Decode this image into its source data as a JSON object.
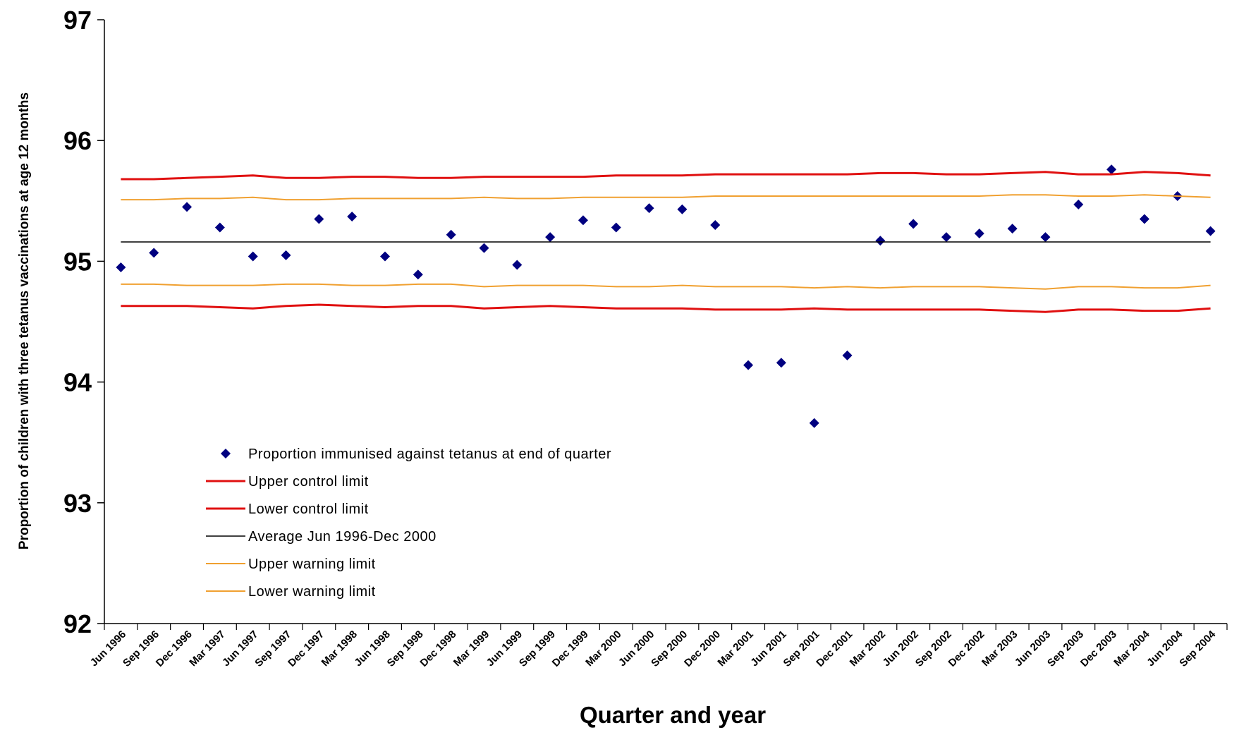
{
  "chart_data": {
    "type": "scatter",
    "title": "",
    "xlabel": "Quarter and year",
    "ylabel": "Proportion of children with three tetanus vaccinations at age 12 months",
    "ylim": [
      92,
      97
    ],
    "yticks": [
      "92",
      "93",
      "94",
      "95",
      "96",
      "97"
    ],
    "grid": false,
    "legend_position": "lower-left",
    "categories": [
      "Jun 1996",
      "Sep 1996",
      "Dec 1996",
      "Mar 1997",
      "Jun 1997",
      "Sep 1997",
      "Dec 1997",
      "Mar 1998",
      "Jun 1998",
      "Sep 1998",
      "Dec 1998",
      "Mar 1999",
      "Jun 1999",
      "Sep 1999",
      "Dec 1999",
      "Mar 2000",
      "Jun 2000",
      "Sep 2000",
      "Dec 2000",
      "Mar 2001",
      "Jun 2001",
      "Sep 2001",
      "Dec 2001",
      "Mar 2002",
      "Jun 2002",
      "Sep 2002",
      "Dec 2002",
      "Mar 2003",
      "Jun 2003",
      "Sep 2003",
      "Dec 2003",
      "Mar 2004",
      "Jun 2004",
      "Sep 2004"
    ],
    "series": [
      {
        "name": "Proportion immunised against tetanus at end of quarter",
        "kind": "marker",
        "marker": "diamond",
        "color": "#000080",
        "values": [
          94.95,
          95.07,
          95.45,
          95.28,
          95.04,
          95.05,
          95.35,
          95.37,
          95.04,
          94.89,
          95.22,
          95.11,
          94.97,
          95.2,
          95.34,
          95.28,
          95.44,
          95.43,
          95.3,
          94.14,
          94.16,
          93.66,
          94.22,
          95.17,
          95.31,
          95.2,
          95.23,
          95.27,
          95.2,
          95.47,
          95.76,
          95.35,
          95.54,
          95.25
        ]
      },
      {
        "name": "Upper control limit",
        "kind": "line",
        "color": "#e01010",
        "values": [
          95.68,
          95.68,
          95.69,
          95.7,
          95.71,
          95.69,
          95.69,
          95.7,
          95.7,
          95.69,
          95.69,
          95.7,
          95.7,
          95.7,
          95.7,
          95.71,
          95.71,
          95.71,
          95.72,
          95.72,
          95.72,
          95.72,
          95.72,
          95.73,
          95.73,
          95.72,
          95.72,
          95.73,
          95.74,
          95.72,
          95.72,
          95.74,
          95.73,
          95.71
        ]
      },
      {
        "name": "Lower control limit",
        "kind": "line",
        "color": "#e01010",
        "values": [
          94.63,
          94.63,
          94.63,
          94.62,
          94.61,
          94.63,
          94.64,
          94.63,
          94.62,
          94.63,
          94.63,
          94.61,
          94.62,
          94.63,
          94.62,
          94.61,
          94.61,
          94.61,
          94.6,
          94.6,
          94.6,
          94.61,
          94.6,
          94.6,
          94.6,
          94.6,
          94.6,
          94.59,
          94.58,
          94.6,
          94.6,
          94.59,
          94.59,
          94.61
        ]
      },
      {
        "name": "Average Jun 1996-Dec 2000",
        "kind": "line",
        "color": "#000000",
        "values": [
          95.16,
          95.16,
          95.16,
          95.16,
          95.16,
          95.16,
          95.16,
          95.16,
          95.16,
          95.16,
          95.16,
          95.16,
          95.16,
          95.16,
          95.16,
          95.16,
          95.16,
          95.16,
          95.16,
          95.16,
          95.16,
          95.16,
          95.16,
          95.16,
          95.16,
          95.16,
          95.16,
          95.16,
          95.16,
          95.16,
          95.16,
          95.16,
          95.16,
          95.16
        ]
      },
      {
        "name": "Upper warning limit",
        "kind": "line",
        "color": "#f0a030",
        "values": [
          95.51,
          95.51,
          95.52,
          95.52,
          95.53,
          95.51,
          95.51,
          95.52,
          95.52,
          95.52,
          95.52,
          95.53,
          95.52,
          95.52,
          95.53,
          95.53,
          95.53,
          95.53,
          95.54,
          95.54,
          95.54,
          95.54,
          95.54,
          95.54,
          95.54,
          95.54,
          95.54,
          95.55,
          95.55,
          95.54,
          95.54,
          95.55,
          95.54,
          95.53
        ]
      },
      {
        "name": "Lower warning limit",
        "kind": "line",
        "color": "#f0a030",
        "values": [
          94.81,
          94.81,
          94.8,
          94.8,
          94.8,
          94.81,
          94.81,
          94.8,
          94.8,
          94.81,
          94.81,
          94.79,
          94.8,
          94.8,
          94.8,
          94.79,
          94.79,
          94.8,
          94.79,
          94.79,
          94.79,
          94.78,
          94.79,
          94.78,
          94.79,
          94.79,
          94.79,
          94.78,
          94.77,
          94.79,
          94.79,
          94.78,
          94.78,
          94.8
        ]
      }
    ]
  }
}
